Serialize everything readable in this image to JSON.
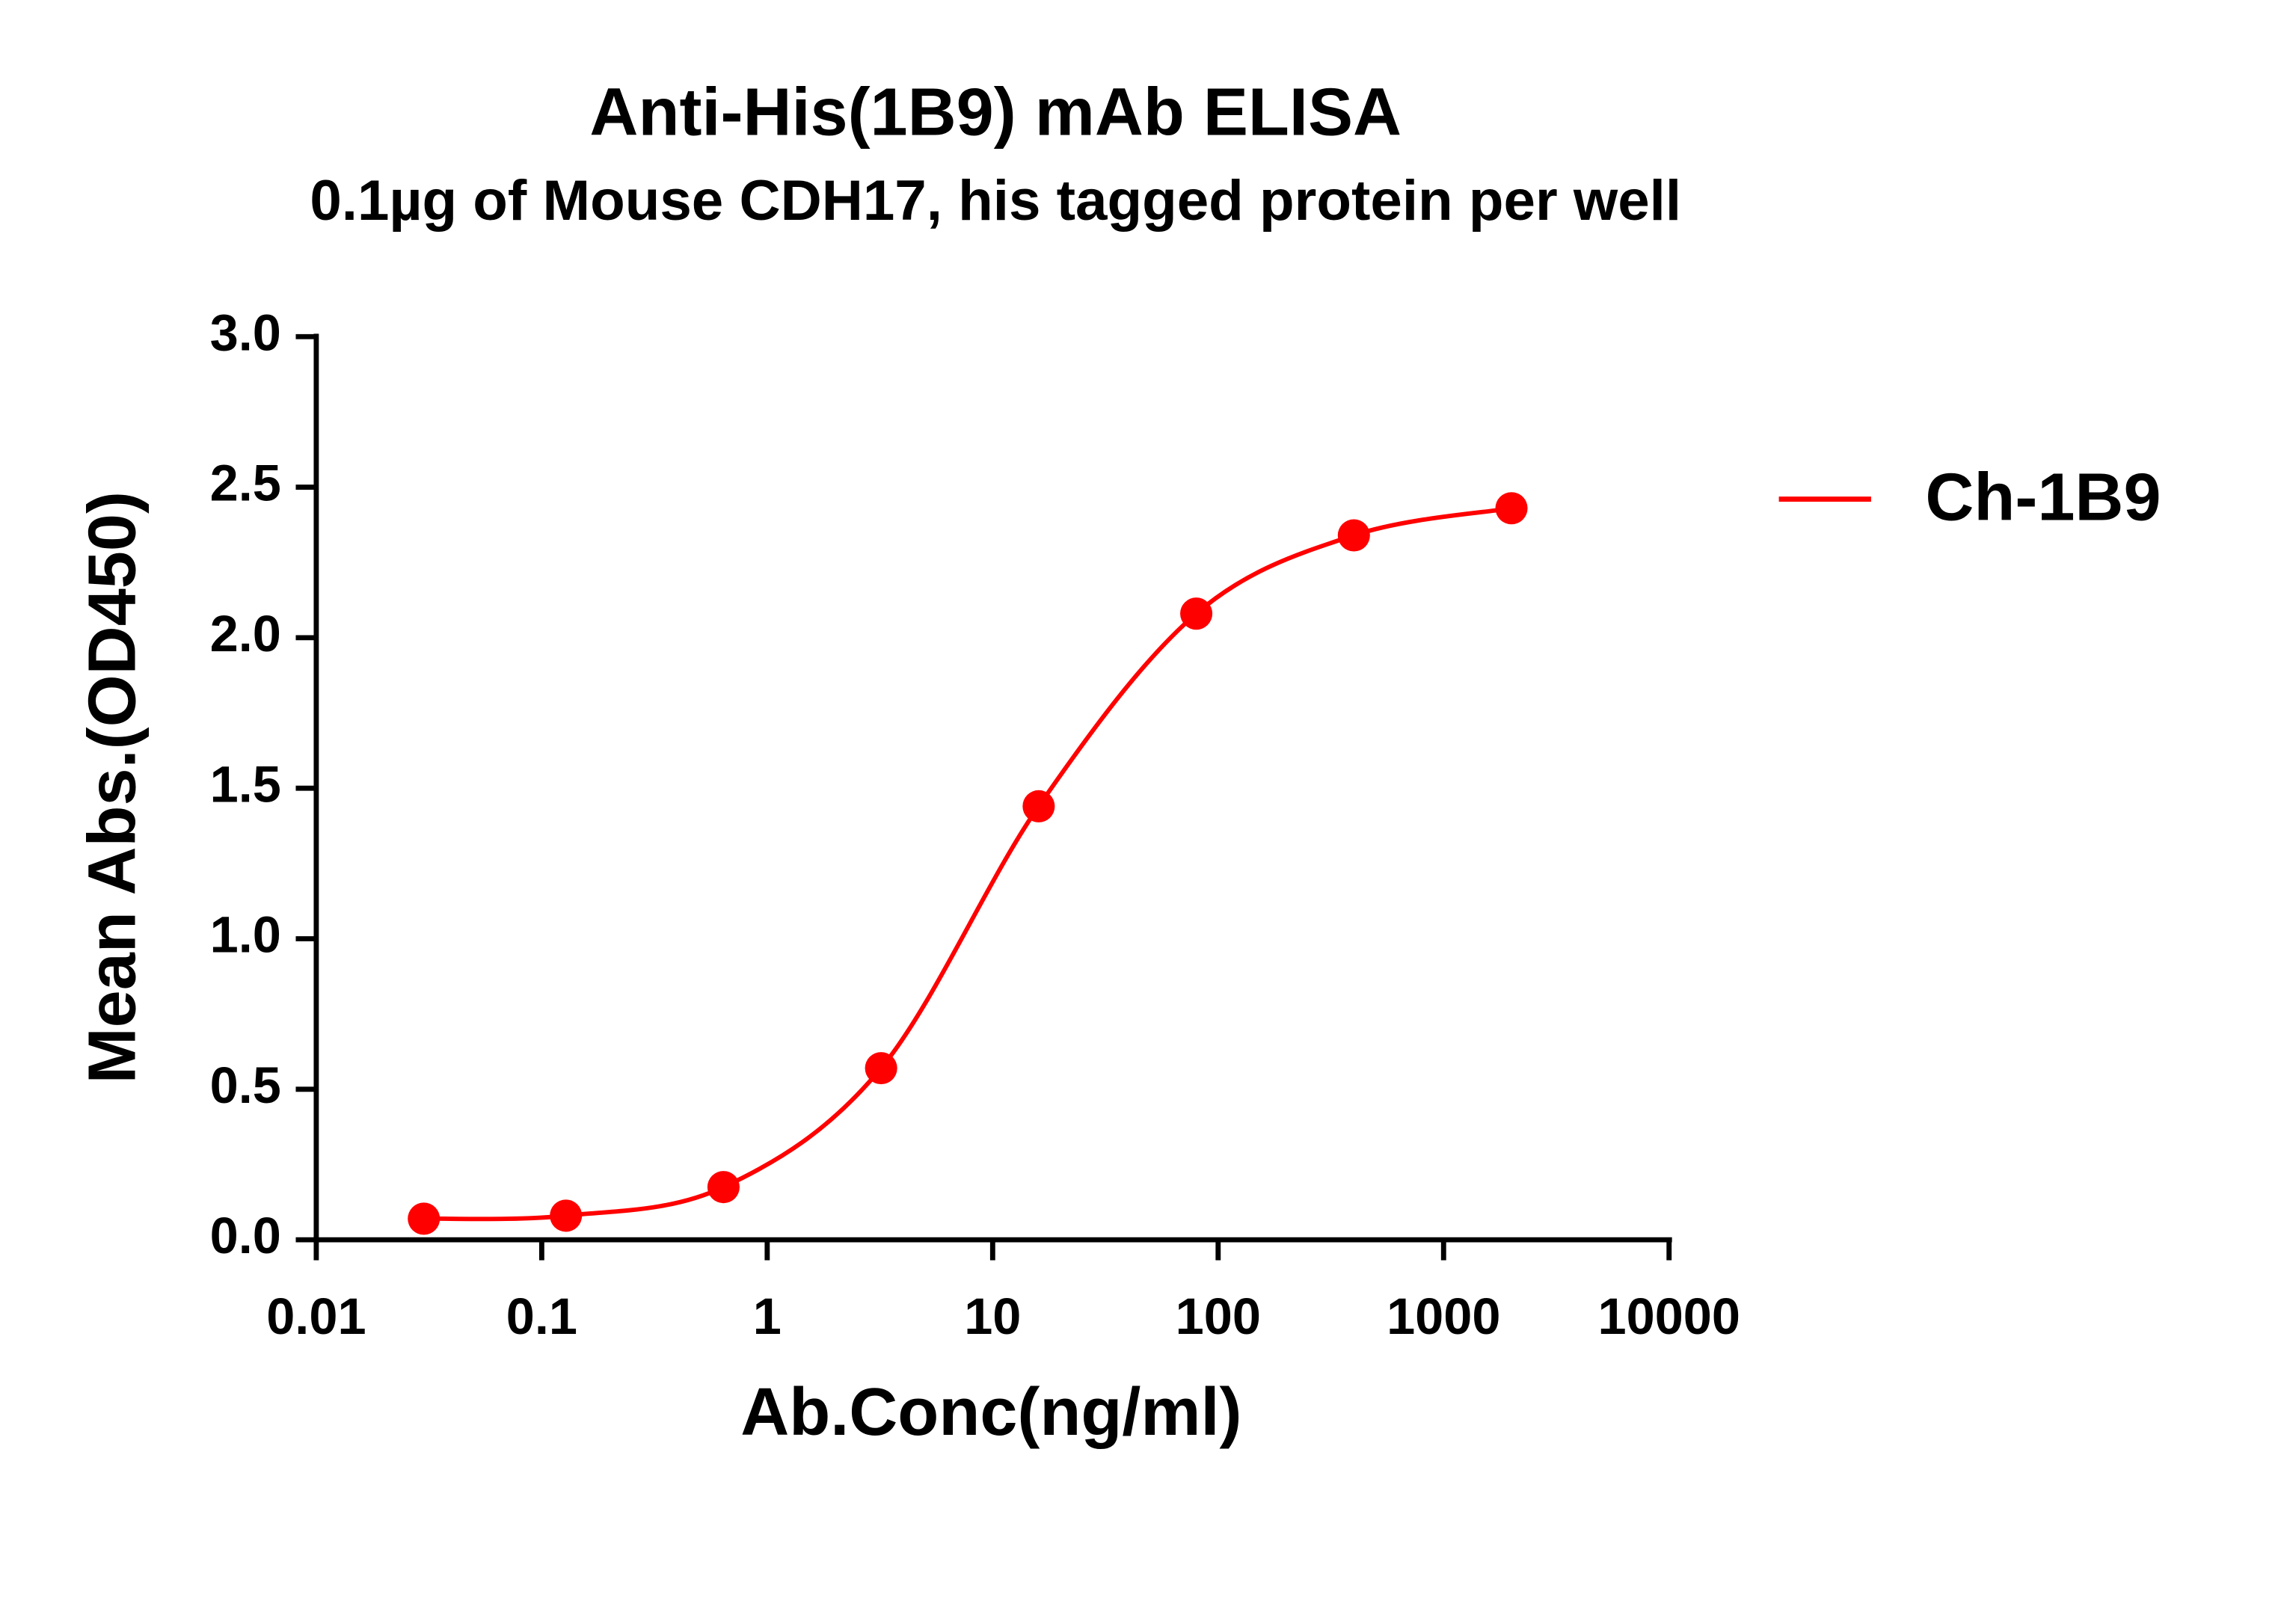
{
  "chart_data": {
    "type": "line",
    "title": "Anti-His(1B9) mAb ELISA",
    "subtitle": "0.1µg of Mouse CDH17, his tagged protein per well",
    "x_label": "Ab.Conc(ng/ml)",
    "y_label": "Mean Abs.(OD450)",
    "x": [
      0.03,
      0.128,
      0.64,
      3.2,
      16,
      80,
      400,
      2000
    ],
    "series": [
      {
        "name": "Ch-1B9",
        "color": "#ff0000",
        "values": [
          0.07,
          0.08,
          0.175,
          0.57,
          1.44,
          2.08,
          2.34,
          2.43
        ]
      }
    ],
    "xscale": "log",
    "xlim": [
      0.01,
      10000
    ],
    "xticks": [
      0.01,
      0.1,
      1,
      10,
      100,
      1000,
      10000
    ],
    "ylim": [
      0,
      3
    ],
    "yticks": [
      {
        "value": 0,
        "label": "0.0"
      },
      0.5,
      {
        "value": 1,
        "label": "1.0"
      },
      1.5,
      {
        "value": 2,
        "label": "2.0"
      },
      2.5,
      {
        "value": 3,
        "label": "3.0"
      }
    ],
    "legend": "right"
  }
}
